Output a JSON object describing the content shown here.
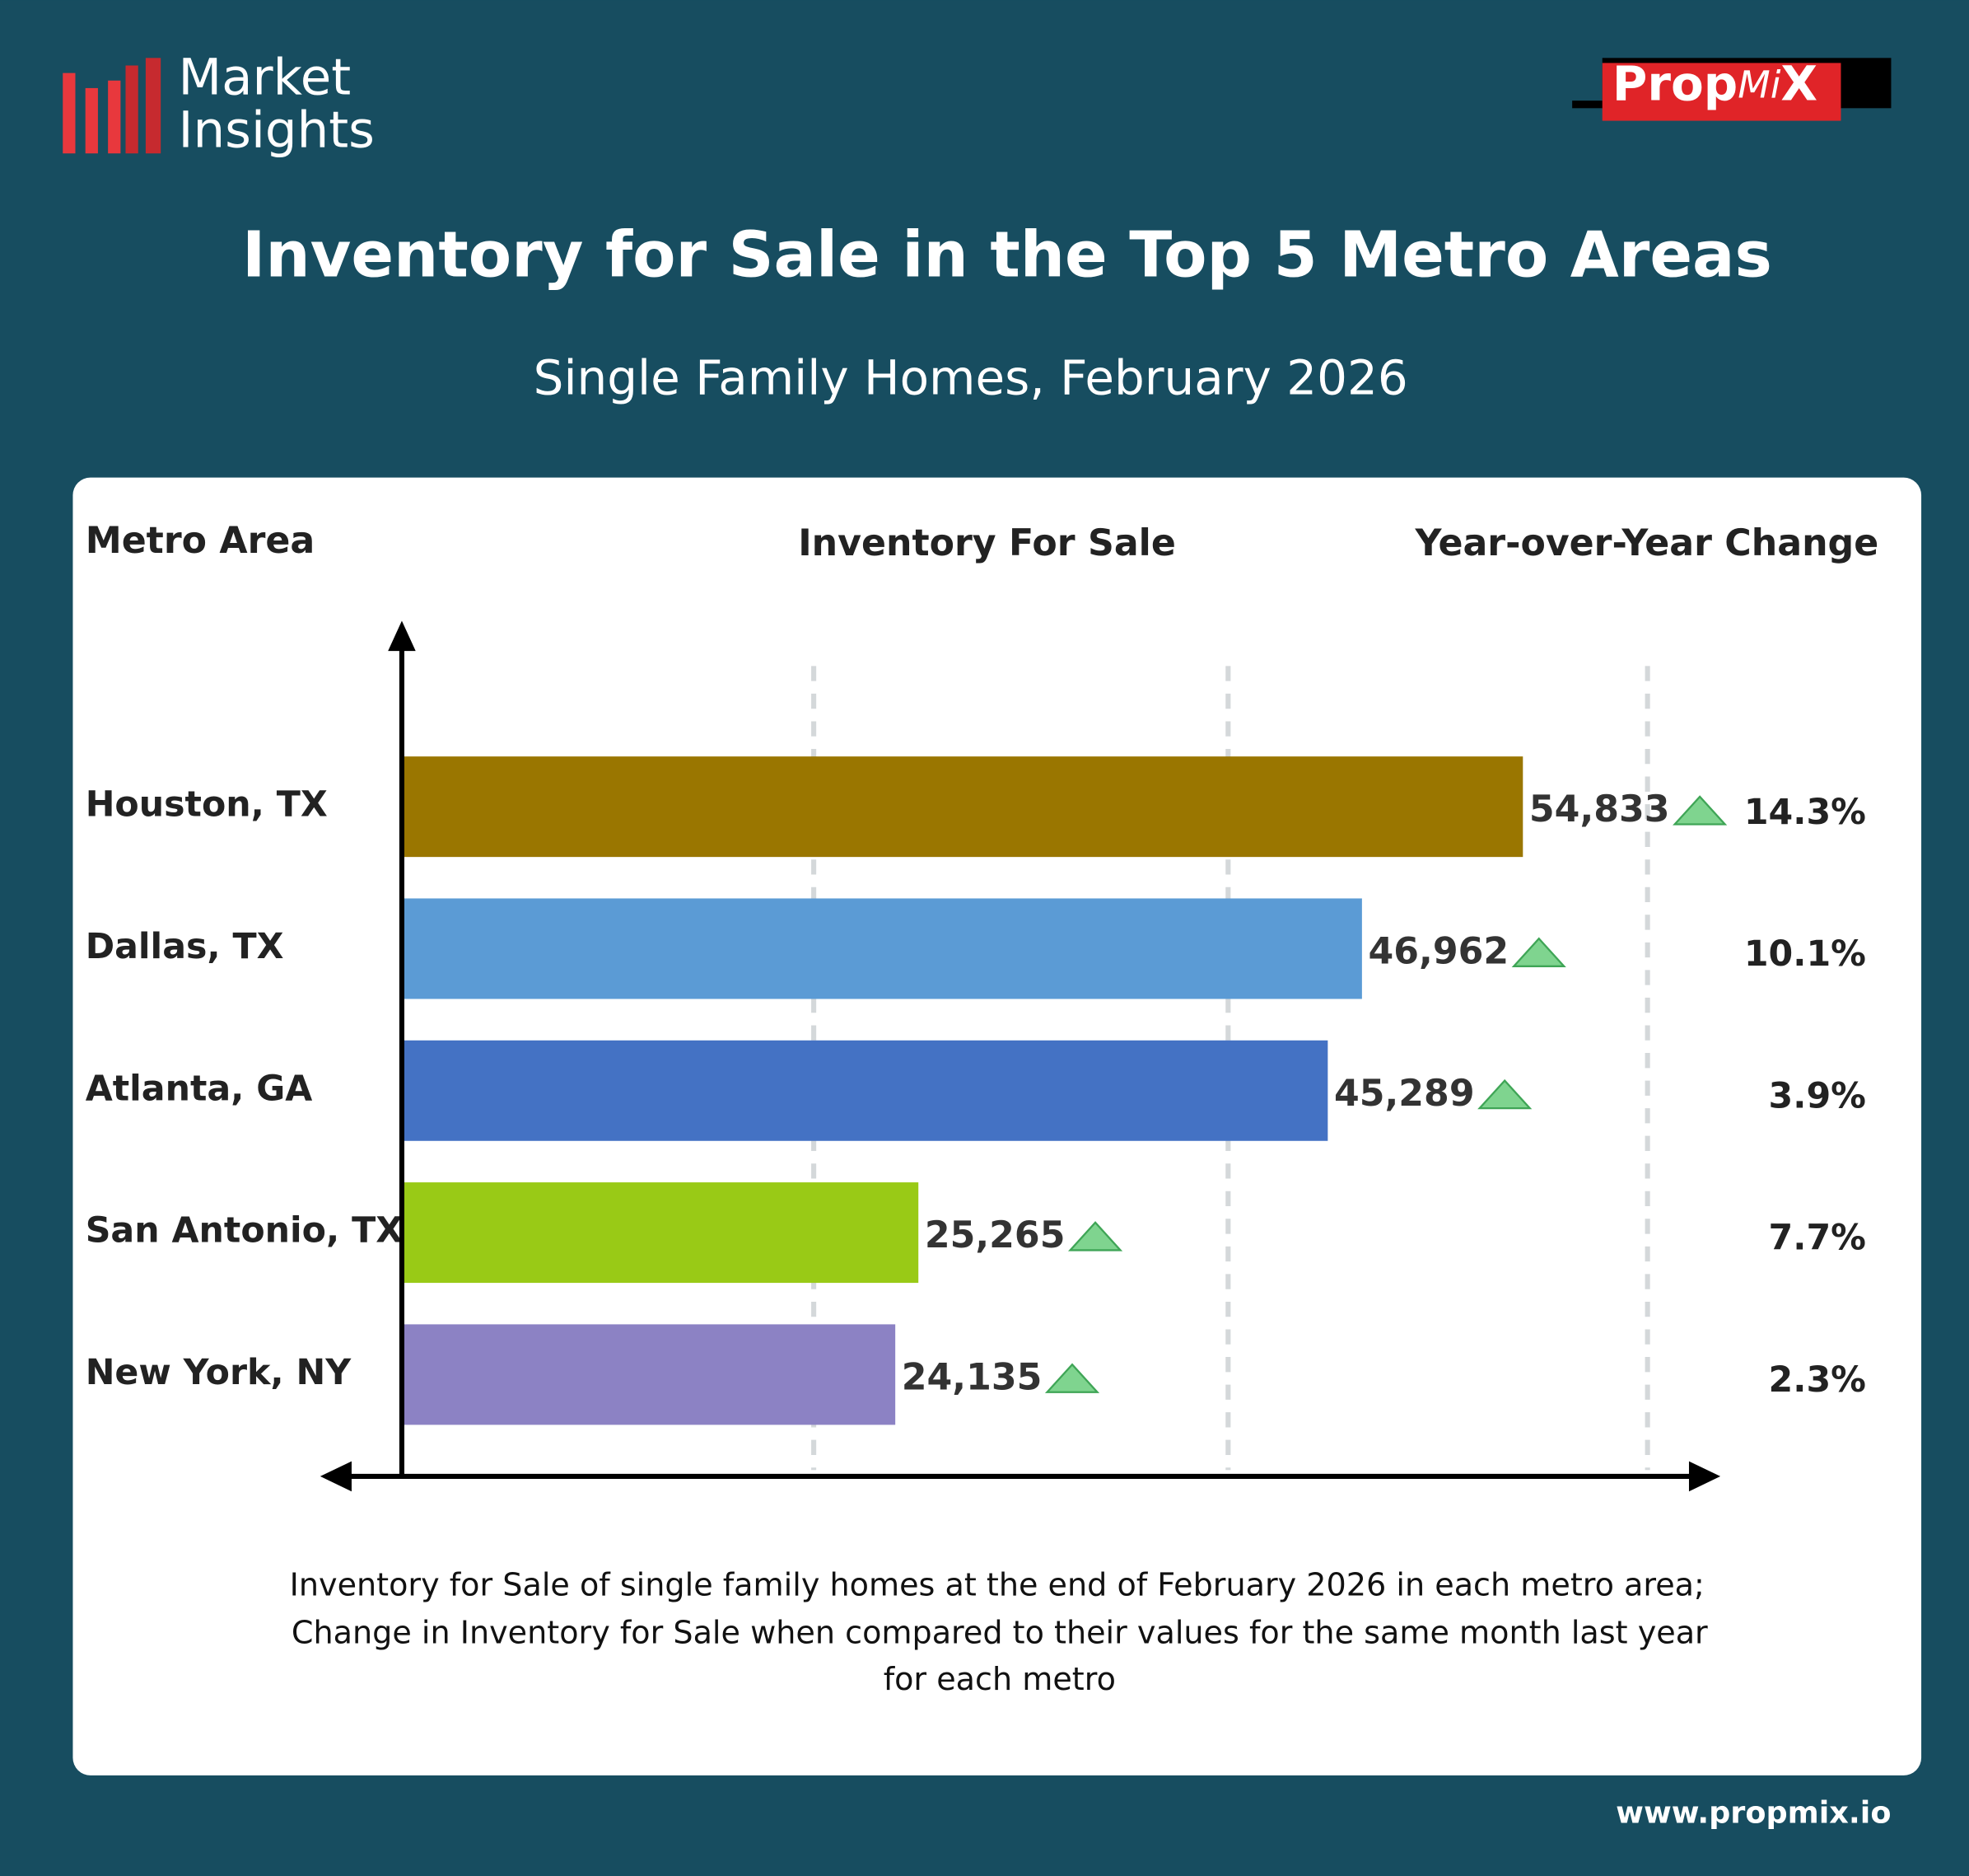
{
  "brand": {
    "logo_lines": [
      "Market",
      "Insights"
    ],
    "partner_parts": [
      "Prop",
      "Mi",
      "X"
    ],
    "url": "www.propmix.io"
  },
  "chart_data": {
    "type": "bar",
    "orientation": "horizontal",
    "title": "Inventory for Sale in the Top 5 Metro Areas",
    "subtitle": "Single Family Homes, February 2026",
    "column_headers": [
      "Metro Area",
      "Inventory For Sale",
      "Year-over-Year Change"
    ],
    "categories": [
      "Houston, TX",
      "Dallas, TX",
      "Atlanta, GA",
      "San Antonio, TX",
      "New York, NY"
    ],
    "values": [
      54833,
      46962,
      45289,
      25265,
      24135
    ],
    "value_labels": [
      "54,833",
      "46,962",
      "45,289",
      "25,265",
      "24,135"
    ],
    "colors": [
      "#9a7600",
      "#5b9bd5",
      "#4472c4",
      "#99ca16",
      "#8c82c4"
    ],
    "yoy_change": {
      "values": [
        14.3,
        10.1,
        3.9,
        7.7,
        2.3
      ],
      "value_labels": [
        "14.3%",
        "10.1%",
        "3.9%",
        "7.7%",
        "2.3%"
      ],
      "color": "#7fd48f"
    },
    "xlim": [
      0,
      64000
    ],
    "footnote_lines": [
      "Inventory for Sale of single family homes at the end of February 2026 in each metro area;",
      "Change in Inventory for Sale when compared to their values for the same month last year",
      "for each metro"
    ]
  }
}
